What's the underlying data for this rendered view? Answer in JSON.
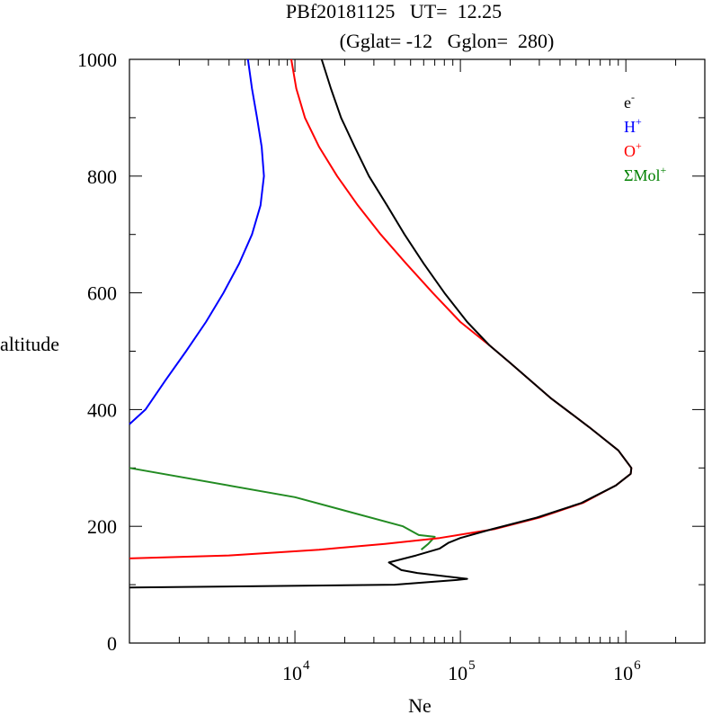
{
  "chart_data": {
    "type": "line",
    "title_line1": "PBf20181125   UT=  12.25",
    "title_line2": "(Gglat= -12   Gglon=  280)",
    "xlabel": "Ne",
    "ylabel": "altitude",
    "x_scale": "log",
    "xlim": [
      1000,
      3000000
    ],
    "ylim": [
      0,
      1000
    ],
    "y_ticks": [
      0,
      200,
      400,
      600,
      800,
      1000
    ],
    "y_tick_labels": [
      "0",
      "200",
      "400",
      "600",
      "800",
      "1000"
    ],
    "x_ticks": [
      10000,
      100000,
      1000000
    ],
    "x_tick_labels": [
      {
        "base": "10",
        "exp": "4"
      },
      {
        "base": "10",
        "exp": "5"
      },
      {
        "base": "10",
        "exp": "6"
      }
    ],
    "legend_position": "top-right",
    "legend": [
      {
        "key": "e",
        "base": "e",
        "sup": "-",
        "color": "#000000"
      },
      {
        "key": "h",
        "base": "H",
        "sup": "+",
        "color": "#0000ff"
      },
      {
        "key": "o",
        "base": "O",
        "sup": "+",
        "color": "#ff0000"
      },
      {
        "key": "mol",
        "base": "ΣMol",
        "sup": "+",
        "color": "#008000"
      }
    ],
    "series": [
      {
        "key": "mol",
        "color": "#228b22",
        "points": [
          [
            1000,
            300
          ],
          [
            10000,
            250
          ],
          [
            45000,
            200
          ],
          [
            56000,
            185
          ],
          [
            70000,
            182
          ],
          [
            64000,
            170
          ],
          [
            58000,
            160
          ]
        ]
      },
      {
        "key": "h",
        "color": "#0000ff",
        "points": [
          [
            1000,
            375
          ],
          [
            1250,
            400
          ],
          [
            1650,
            450
          ],
          [
            2200,
            500
          ],
          [
            2900,
            550
          ],
          [
            3700,
            600
          ],
          [
            4600,
            650
          ],
          [
            5500,
            700
          ],
          [
            6200,
            750
          ],
          [
            6500,
            800
          ],
          [
            6300,
            850
          ],
          [
            5900,
            900
          ],
          [
            5500,
            950
          ],
          [
            5200,
            1000
          ]
        ]
      },
      {
        "key": "o",
        "color": "#ff0000",
        "points": [
          [
            1000,
            145
          ],
          [
            4000,
            150
          ],
          [
            14000,
            160
          ],
          [
            35000,
            170
          ],
          [
            75000,
            180
          ],
          [
            160000,
            195
          ],
          [
            300000,
            215
          ],
          [
            550000,
            240
          ],
          [
            870000,
            270
          ],
          [
            1070000,
            290
          ],
          [
            1080000,
            300
          ],
          [
            900000,
            330
          ],
          [
            600000,
            370
          ],
          [
            350000,
            420
          ],
          [
            200000,
            480
          ],
          [
            150000,
            510
          ],
          [
            100000,
            550
          ],
          [
            68000,
            600
          ],
          [
            47000,
            650
          ],
          [
            33000,
            700
          ],
          [
            24000,
            750
          ],
          [
            18000,
            800
          ],
          [
            14000,
            850
          ],
          [
            11500,
            900
          ],
          [
            10200,
            950
          ],
          [
            9500,
            1000
          ]
        ]
      },
      {
        "key": "e",
        "color": "#000000",
        "points": [
          [
            1000,
            95
          ],
          [
            40000,
            100
          ],
          [
            95000,
            108
          ],
          [
            110000,
            110
          ],
          [
            55000,
            120
          ],
          [
            44000,
            125
          ],
          [
            37000,
            138
          ],
          [
            54000,
            150
          ],
          [
            75000,
            162
          ],
          [
            85000,
            172
          ],
          [
            100000,
            180
          ],
          [
            155000,
            195
          ],
          [
            290000,
            215
          ],
          [
            540000,
            240
          ],
          [
            870000,
            270
          ],
          [
            1070000,
            290
          ],
          [
            1080000,
            300
          ],
          [
            900000,
            330
          ],
          [
            600000,
            370
          ],
          [
            350000,
            420
          ],
          [
            200000,
            480
          ],
          [
            150000,
            510
          ],
          [
            110000,
            550
          ],
          [
            80000,
            600
          ],
          [
            60000,
            650
          ],
          [
            46000,
            700
          ],
          [
            36000,
            750
          ],
          [
            28000,
            800
          ],
          [
            23000,
            850
          ],
          [
            19000,
            900
          ],
          [
            16500,
            950
          ],
          [
            14500,
            1000
          ]
        ]
      }
    ]
  }
}
